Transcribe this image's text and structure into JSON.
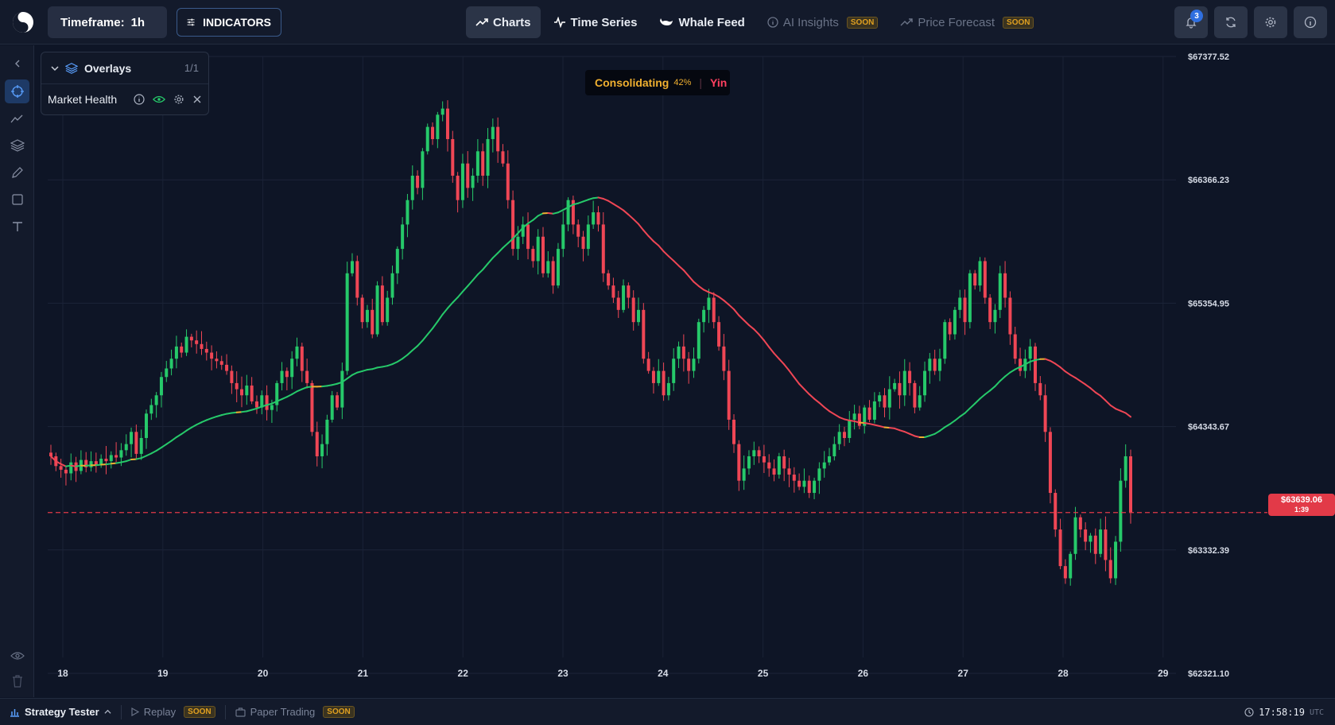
{
  "topbar": {
    "timeframe_label": "Timeframe:",
    "timeframe_value": "1h",
    "indicators_label": "INDICATORS",
    "nav": [
      {
        "label": "Charts",
        "icon": "trend-up-icon",
        "state": "active",
        "soon": ""
      },
      {
        "label": "Time Series",
        "icon": "pulse-icon",
        "state": "normal",
        "soon": ""
      },
      {
        "label": "Whale Feed",
        "icon": "whale-icon",
        "state": "normal",
        "soon": ""
      },
      {
        "label": "AI Insights",
        "icon": "info-icon",
        "state": "disabled",
        "soon": "SOON"
      },
      {
        "label": "Price Forecast",
        "icon": "trend-up-icon",
        "state": "disabled",
        "soon": "SOON"
      }
    ],
    "notifications_count": "3"
  },
  "overlays": {
    "title": "Overlays",
    "count": "1/1",
    "items": [
      {
        "name": "Market Health"
      }
    ]
  },
  "status": {
    "state": "Consolidating",
    "percent": "42%",
    "phase": "Yin"
  },
  "current_price": {
    "value": "$63639.06",
    "countdown": "1:39"
  },
  "bottombar": {
    "strategy_tester": "Strategy Tester",
    "replay": "Replay",
    "replay_soon": "SOON",
    "paper_trading": "Paper Trading",
    "paper_soon": "SOON",
    "time": "17:58:19",
    "tz": "UTC"
  },
  "colors": {
    "up": "#26c96a",
    "down": "#ef4655",
    "ma_yellow": "#f0b030",
    "price_line": "#e23a48"
  },
  "chart_data": {
    "type": "candlestick",
    "y_ticks": [
      "$67377.52",
      "$66366.23",
      "$65354.95",
      "$64343.67",
      "$63332.39",
      "$62321.10"
    ],
    "ylim": [
      62321.1,
      67377.52
    ],
    "x_ticks": [
      "18",
      "19",
      "20",
      "21",
      "22",
      "23",
      "24",
      "25",
      "26",
      "27",
      "28",
      "29"
    ],
    "current_price": 63639.06,
    "closes": [
      64100,
      64020,
      63990,
      63960,
      64050,
      63980,
      64070,
      64010,
      64060,
      64030,
      64080,
      64060,
      64110,
      64090,
      64150,
      64200,
      64300,
      64120,
      64250,
      64450,
      64520,
      64600,
      64750,
      64820,
      64900,
      65000,
      64950,
      65080,
      65050,
      65020,
      64980,
      64950,
      64900,
      64880,
      64850,
      64800,
      64700,
      64650,
      64600,
      64680,
      64550,
      64500,
      64600,
      64480,
      64520,
      64700,
      64800,
      64750,
      64900,
      65000,
      64800,
      64700,
      64300,
      64100,
      64200,
      64400,
      64600,
      64500,
      64800,
      65600,
      65700,
      65400,
      65200,
      65300,
      65100,
      65500,
      65200,
      65400,
      65600,
      65800,
      66000,
      66200,
      66400,
      66300,
      66600,
      66800,
      66700,
      66900,
      66950,
      66700,
      66400,
      66200,
      66500,
      66300,
      66400,
      66600,
      66400,
      66700,
      66800,
      66600,
      66500,
      66200,
      65800,
      65900,
      66000,
      65800,
      65700,
      65900,
      65600,
      65700,
      65500,
      65800,
      66000,
      66200,
      66000,
      65900,
      65800,
      66000,
      66100,
      66000,
      65600,
      65500,
      65400,
      65300,
      65500,
      65400,
      65200,
      65300,
      64900,
      64800,
      64700,
      64800,
      64600,
      64700,
      64900,
      65000,
      64900,
      64800,
      64900,
      65200,
      65300,
      65400,
      65200,
      65000,
      64800,
      64400,
      64200,
      63900,
      64000,
      64100,
      64150,
      64100,
      64050,
      64000,
      63950,
      64100,
      64000,
      63950,
      63900,
      63850,
      63900,
      63800,
      63900,
      64000,
      64050,
      64100,
      64200,
      64300,
      64250,
      64400,
      64450,
      64350,
      64500,
      64400,
      64550,
      64600,
      64500,
      64650,
      64700,
      64600,
      64800,
      64700,
      64500,
      64600,
      64800,
      64900,
      64800,
      64900,
      65200,
      65100,
      65300,
      65400,
      65200,
      65600,
      65500,
      65700,
      65400,
      65200,
      65300,
      65600,
      65400,
      65100,
      64900,
      64800,
      64900,
      65000,
      64700,
      64600,
      64300,
      63800,
      63500,
      63200,
      63100,
      63300,
      63600,
      63500,
      63400,
      63450,
      63300,
      63500,
      63250,
      63100,
      63400,
      63900,
      64100,
      63639
    ]
  }
}
